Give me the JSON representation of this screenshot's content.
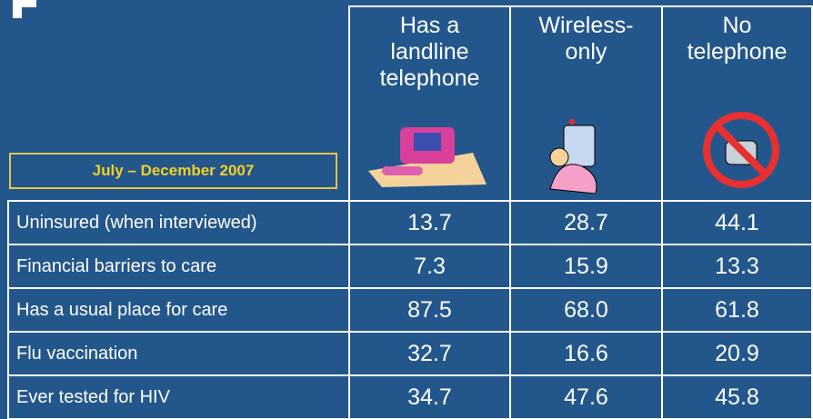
{
  "period": "July – December 2007",
  "table": {
    "columns": [
      "Has a\nlandline\ntelephone",
      "Wireless-\nonly",
      "No\ntelephone"
    ],
    "rows": [
      [
        "Uninsured (when interviewed)",
        "13.7",
        "28.7",
        "44.1"
      ],
      [
        "Financial barriers to care",
        "7.3",
        "15.9",
        "13.3"
      ],
      [
        "Has a usual place for care",
        "87.5",
        "68.0",
        "61.8"
      ],
      [
        "Flu vaccination",
        "32.7",
        "16.6",
        "20.9"
      ],
      [
        "Ever tested for HIV",
        "34.7",
        "47.6",
        "45.8"
      ]
    ]
  }
}
